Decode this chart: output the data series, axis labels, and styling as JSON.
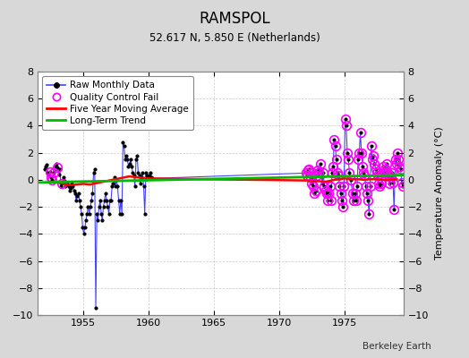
{
  "title": "RAMSPOL",
  "subtitle": "52.617 N, 5.850 E (Netherlands)",
  "ylabel": "Temperature Anomaly (°C)",
  "credit": "Berkeley Earth",
  "xlim": [
    1951.5,
    1979.5
  ],
  "ylim": [
    -10,
    8
  ],
  "xticks": [
    1955,
    1960,
    1965,
    1970,
    1975
  ],
  "yticks": [
    -10,
    -8,
    -6,
    -4,
    -2,
    0,
    2,
    4,
    6,
    8
  ],
  "bg_color": "#d8d8d8",
  "plot_bg_color": "#ffffff",
  "raw_color": "#4444ff",
  "raw_dot_color": "#000000",
  "qc_color": "#ff00ff",
  "ma_color": "#ff0000",
  "trend_color": "#00bb00",
  "raw_monthly": [
    [
      1952.042,
      0.8
    ],
    [
      1952.125,
      1.0
    ],
    [
      1952.208,
      1.1
    ],
    [
      1952.292,
      0.5
    ],
    [
      1952.375,
      0.3
    ],
    [
      1952.458,
      0.6
    ],
    [
      1952.542,
      0.2
    ],
    [
      1952.625,
      0.0
    ],
    [
      1952.708,
      0.5
    ],
    [
      1952.792,
      0.7
    ],
    [
      1952.875,
      1.0
    ],
    [
      1952.958,
      1.2
    ],
    [
      1953.042,
      0.9
    ],
    [
      1953.125,
      0.4
    ],
    [
      1953.208,
      0.8
    ],
    [
      1953.292,
      -0.5
    ],
    [
      1953.375,
      -0.3
    ],
    [
      1953.458,
      0.2
    ],
    [
      1953.542,
      -0.1
    ],
    [
      1953.625,
      -0.5
    ],
    [
      1953.708,
      -0.2
    ],
    [
      1953.792,
      -0.3
    ],
    [
      1953.875,
      -0.5
    ],
    [
      1953.958,
      -0.8
    ],
    [
      1954.042,
      -0.6
    ],
    [
      1954.125,
      -0.3
    ],
    [
      1954.208,
      -0.5
    ],
    [
      1954.292,
      -0.8
    ],
    [
      1954.375,
      -1.0
    ],
    [
      1954.458,
      -1.5
    ],
    [
      1954.542,
      -1.2
    ],
    [
      1954.625,
      -1.0
    ],
    [
      1954.708,
      -1.5
    ],
    [
      1954.792,
      -2.0
    ],
    [
      1954.875,
      -2.5
    ],
    [
      1954.958,
      -3.5
    ],
    [
      1955.042,
      -4.0
    ],
    [
      1955.125,
      -3.5
    ],
    [
      1955.208,
      -3.0
    ],
    [
      1955.292,
      -2.5
    ],
    [
      1955.375,
      -2.0
    ],
    [
      1955.458,
      -2.5
    ],
    [
      1955.542,
      -2.0
    ],
    [
      1955.625,
      -1.5
    ],
    [
      1955.708,
      -1.0
    ],
    [
      1955.792,
      0.5
    ],
    [
      1955.875,
      0.8
    ],
    [
      1955.958,
      -9.5
    ],
    [
      1956.042,
      -2.5
    ],
    [
      1956.125,
      -3.0
    ],
    [
      1956.208,
      -2.0
    ],
    [
      1956.292,
      -1.5
    ],
    [
      1956.375,
      -2.5
    ],
    [
      1956.458,
      -3.0
    ],
    [
      1956.542,
      -2.0
    ],
    [
      1956.625,
      -1.5
    ],
    [
      1956.708,
      -1.0
    ],
    [
      1956.792,
      -1.5
    ],
    [
      1956.875,
      -2.0
    ],
    [
      1956.958,
      -2.5
    ],
    [
      1957.042,
      -1.5
    ],
    [
      1957.125,
      -1.5
    ],
    [
      1957.208,
      -0.5
    ],
    [
      1957.292,
      -0.3
    ],
    [
      1957.375,
      0.2
    ],
    [
      1957.458,
      -0.5
    ],
    [
      1957.542,
      0.0
    ],
    [
      1957.625,
      -0.5
    ],
    [
      1957.708,
      -1.5
    ],
    [
      1957.792,
      -2.5
    ],
    [
      1957.875,
      -1.5
    ],
    [
      1957.958,
      -2.5
    ],
    [
      1958.042,
      2.8
    ],
    [
      1958.125,
      2.5
    ],
    [
      1958.208,
      1.5
    ],
    [
      1958.292,
      1.8
    ],
    [
      1958.375,
      1.5
    ],
    [
      1958.458,
      1.0
    ],
    [
      1958.542,
      1.2
    ],
    [
      1958.625,
      1.5
    ],
    [
      1958.708,
      1.0
    ],
    [
      1958.792,
      0.5
    ],
    [
      1958.875,
      0.3
    ],
    [
      1958.958,
      -0.5
    ],
    [
      1959.042,
      1.5
    ],
    [
      1959.125,
      1.8
    ],
    [
      1959.208,
      0.5
    ],
    [
      1959.292,
      0.3
    ],
    [
      1959.375,
      -0.3
    ],
    [
      1959.458,
      0.2
    ],
    [
      1959.542,
      0.5
    ],
    [
      1959.625,
      -0.5
    ],
    [
      1959.708,
      -2.5
    ],
    [
      1959.792,
      0.5
    ],
    [
      1959.875,
      0.3
    ],
    [
      1959.958,
      0.2
    ],
    [
      1960.042,
      0.3
    ],
    [
      1960.125,
      0.5
    ],
    [
      1960.208,
      0.2
    ],
    [
      1960.292,
      0.1
    ],
    [
      1972.042,
      0.5
    ],
    [
      1972.125,
      0.3
    ],
    [
      1972.208,
      0.7
    ],
    [
      1972.292,
      0.8
    ],
    [
      1972.375,
      0.2
    ],
    [
      1972.458,
      -0.3
    ],
    [
      1972.542,
      0.5
    ],
    [
      1972.625,
      -0.5
    ],
    [
      1972.708,
      -1.0
    ],
    [
      1972.792,
      -0.8
    ],
    [
      1972.875,
      0.3
    ],
    [
      1972.958,
      0.7
    ],
    [
      1973.042,
      0.5
    ],
    [
      1973.125,
      1.2
    ],
    [
      1973.208,
      0.8
    ],
    [
      1973.292,
      -0.3
    ],
    [
      1973.375,
      0.5
    ],
    [
      1973.458,
      -0.5
    ],
    [
      1973.542,
      -0.8
    ],
    [
      1973.625,
      -1.0
    ],
    [
      1973.708,
      -1.5
    ],
    [
      1973.792,
      -1.0
    ],
    [
      1973.875,
      -0.5
    ],
    [
      1973.958,
      -1.5
    ],
    [
      1974.042,
      0.5
    ],
    [
      1974.125,
      1.0
    ],
    [
      1974.208,
      3.0
    ],
    [
      1974.292,
      2.5
    ],
    [
      1974.375,
      1.5
    ],
    [
      1974.458,
      0.5
    ],
    [
      1974.542,
      0.3
    ],
    [
      1974.625,
      -0.5
    ],
    [
      1974.708,
      -1.0
    ],
    [
      1974.792,
      -1.5
    ],
    [
      1974.875,
      -2.0
    ],
    [
      1974.958,
      -0.5
    ],
    [
      1975.042,
      4.5
    ],
    [
      1975.125,
      4.0
    ],
    [
      1975.208,
      2.0
    ],
    [
      1975.292,
      1.5
    ],
    [
      1975.375,
      0.5
    ],
    [
      1975.458,
      0.0
    ],
    [
      1975.625,
      -1.0
    ],
    [
      1975.708,
      -1.5
    ],
    [
      1975.792,
      -1.0
    ],
    [
      1975.875,
      -1.5
    ],
    [
      1975.958,
      -0.5
    ],
    [
      1976.042,
      1.5
    ],
    [
      1976.125,
      2.0
    ],
    [
      1976.208,
      3.5
    ],
    [
      1976.292,
      2.0
    ],
    [
      1976.375,
      1.0
    ],
    [
      1976.458,
      0.5
    ],
    [
      1976.542,
      0.3
    ],
    [
      1976.625,
      -0.5
    ],
    [
      1976.708,
      -1.0
    ],
    [
      1976.792,
      -1.5
    ],
    [
      1976.875,
      -2.5
    ],
    [
      1976.958,
      -0.5
    ],
    [
      1977.042,
      2.5
    ],
    [
      1977.125,
      1.5
    ],
    [
      1977.208,
      1.8
    ],
    [
      1977.292,
      1.2
    ],
    [
      1977.375,
      0.8
    ],
    [
      1977.458,
      0.5
    ],
    [
      1977.542,
      0.3
    ],
    [
      1977.625,
      -0.3
    ],
    [
      1977.708,
      -0.5
    ],
    [
      1977.792,
      -0.3
    ],
    [
      1977.875,
      0.5
    ],
    [
      1977.958,
      1.0
    ],
    [
      1978.042,
      0.5
    ],
    [
      1978.125,
      0.8
    ],
    [
      1978.208,
      1.2
    ],
    [
      1978.292,
      0.5
    ],
    [
      1978.375,
      0.3
    ],
    [
      1978.458,
      -0.3
    ],
    [
      1978.542,
      0.2
    ],
    [
      1978.625,
      0.5
    ],
    [
      1978.708,
      -0.2
    ],
    [
      1978.792,
      -2.2
    ],
    [
      1978.875,
      1.5
    ],
    [
      1978.958,
      1.2
    ],
    [
      1979.042,
      2.0
    ],
    [
      1979.125,
      1.5
    ],
    [
      1979.208,
      1.0
    ],
    [
      1979.292,
      0.8
    ],
    [
      1979.375,
      -0.2
    ],
    [
      1979.458,
      -0.5
    ]
  ],
  "qc_fail": [
    [
      1952.458,
      0.6
    ],
    [
      1952.542,
      0.2
    ],
    [
      1952.625,
      0.0
    ],
    [
      1952.708,
      0.5
    ],
    [
      1953.042,
      0.9
    ],
    [
      1953.375,
      -0.3
    ],
    [
      1972.042,
      0.5
    ],
    [
      1972.125,
      0.3
    ],
    [
      1972.208,
      0.7
    ],
    [
      1972.292,
      0.8
    ],
    [
      1972.375,
      0.2
    ],
    [
      1972.458,
      -0.3
    ],
    [
      1972.542,
      0.5
    ],
    [
      1972.625,
      -0.5
    ],
    [
      1972.708,
      -1.0
    ],
    [
      1972.792,
      -0.8
    ],
    [
      1972.875,
      0.3
    ],
    [
      1972.958,
      0.7
    ],
    [
      1973.042,
      0.5
    ],
    [
      1973.125,
      1.2
    ],
    [
      1973.375,
      0.5
    ],
    [
      1973.458,
      -0.5
    ],
    [
      1973.542,
      -0.8
    ],
    [
      1973.625,
      -1.0
    ],
    [
      1973.708,
      -1.5
    ],
    [
      1973.792,
      -1.0
    ],
    [
      1973.875,
      -0.5
    ],
    [
      1973.958,
      -1.5
    ],
    [
      1974.042,
      0.5
    ],
    [
      1974.125,
      1.0
    ],
    [
      1974.208,
      3.0
    ],
    [
      1974.292,
      2.5
    ],
    [
      1974.375,
      1.5
    ],
    [
      1974.458,
      0.5
    ],
    [
      1974.542,
      0.3
    ],
    [
      1974.625,
      -0.5
    ],
    [
      1974.708,
      -1.0
    ],
    [
      1974.792,
      -1.5
    ],
    [
      1974.875,
      -2.0
    ],
    [
      1974.958,
      -0.5
    ],
    [
      1975.042,
      4.5
    ],
    [
      1975.125,
      4.0
    ],
    [
      1975.208,
      2.0
    ],
    [
      1975.292,
      1.5
    ],
    [
      1975.375,
      0.5
    ],
    [
      1975.458,
      0.0
    ],
    [
      1975.625,
      -1.0
    ],
    [
      1975.708,
      -1.5
    ],
    [
      1975.792,
      -1.0
    ],
    [
      1975.875,
      -1.5
    ],
    [
      1975.958,
      -0.5
    ],
    [
      1976.042,
      1.5
    ],
    [
      1976.125,
      2.0
    ],
    [
      1976.208,
      3.5
    ],
    [
      1976.292,
      2.0
    ],
    [
      1976.375,
      1.0
    ],
    [
      1976.458,
      0.5
    ],
    [
      1976.542,
      0.3
    ],
    [
      1976.625,
      -0.5
    ],
    [
      1976.708,
      -1.0
    ],
    [
      1976.792,
      -1.5
    ],
    [
      1976.875,
      -2.5
    ],
    [
      1976.958,
      -0.5
    ],
    [
      1977.042,
      2.5
    ],
    [
      1977.125,
      1.5
    ],
    [
      1977.208,
      1.8
    ],
    [
      1977.292,
      1.2
    ],
    [
      1977.375,
      0.8
    ],
    [
      1977.458,
      0.5
    ],
    [
      1977.542,
      0.3
    ],
    [
      1977.625,
      -0.3
    ],
    [
      1977.708,
      -0.5
    ],
    [
      1977.792,
      -0.3
    ],
    [
      1977.875,
      0.5
    ],
    [
      1977.958,
      1.0
    ],
    [
      1978.042,
      0.5
    ],
    [
      1978.125,
      0.8
    ],
    [
      1978.208,
      1.2
    ],
    [
      1978.292,
      0.5
    ],
    [
      1978.375,
      0.3
    ],
    [
      1978.458,
      -0.3
    ],
    [
      1978.542,
      0.2
    ],
    [
      1978.625,
      0.5
    ],
    [
      1978.708,
      -0.2
    ],
    [
      1978.792,
      -2.2
    ],
    [
      1978.875,
      1.5
    ],
    [
      1978.958,
      1.2
    ],
    [
      1979.042,
      2.0
    ],
    [
      1979.125,
      1.5
    ],
    [
      1979.208,
      1.0
    ],
    [
      1979.292,
      0.8
    ],
    [
      1979.375,
      -0.2
    ],
    [
      1979.458,
      -0.5
    ]
  ],
  "moving_avg": [
    [
      1952.5,
      -0.15
    ],
    [
      1953.0,
      -0.2
    ],
    [
      1953.5,
      -0.3
    ],
    [
      1954.0,
      -0.4
    ],
    [
      1954.5,
      -0.35
    ],
    [
      1955.0,
      -0.3
    ],
    [
      1955.5,
      -0.35
    ],
    [
      1956.0,
      -0.25
    ],
    [
      1956.5,
      -0.15
    ],
    [
      1957.0,
      -0.05
    ],
    [
      1957.5,
      0.05
    ],
    [
      1958.0,
      0.15
    ],
    [
      1958.5,
      0.25
    ],
    [
      1959.0,
      0.2
    ],
    [
      1959.5,
      0.15
    ],
    [
      1960.0,
      0.1
    ],
    [
      1972.0,
      -0.05
    ],
    [
      1972.5,
      -0.1
    ],
    [
      1973.0,
      -0.1
    ],
    [
      1973.5,
      -0.15
    ],
    [
      1974.0,
      -0.05
    ],
    [
      1974.5,
      0.05
    ],
    [
      1975.0,
      0.1
    ],
    [
      1975.5,
      0.05
    ],
    [
      1976.0,
      0.05
    ],
    [
      1976.5,
      0.0
    ],
    [
      1977.0,
      0.05
    ],
    [
      1977.5,
      0.05
    ],
    [
      1978.0,
      0.0
    ],
    [
      1978.5,
      0.0
    ],
    [
      1979.0,
      0.05
    ]
  ],
  "trend_line": [
    [
      1951.5,
      -0.2
    ],
    [
      1979.5,
      0.35
    ]
  ]
}
